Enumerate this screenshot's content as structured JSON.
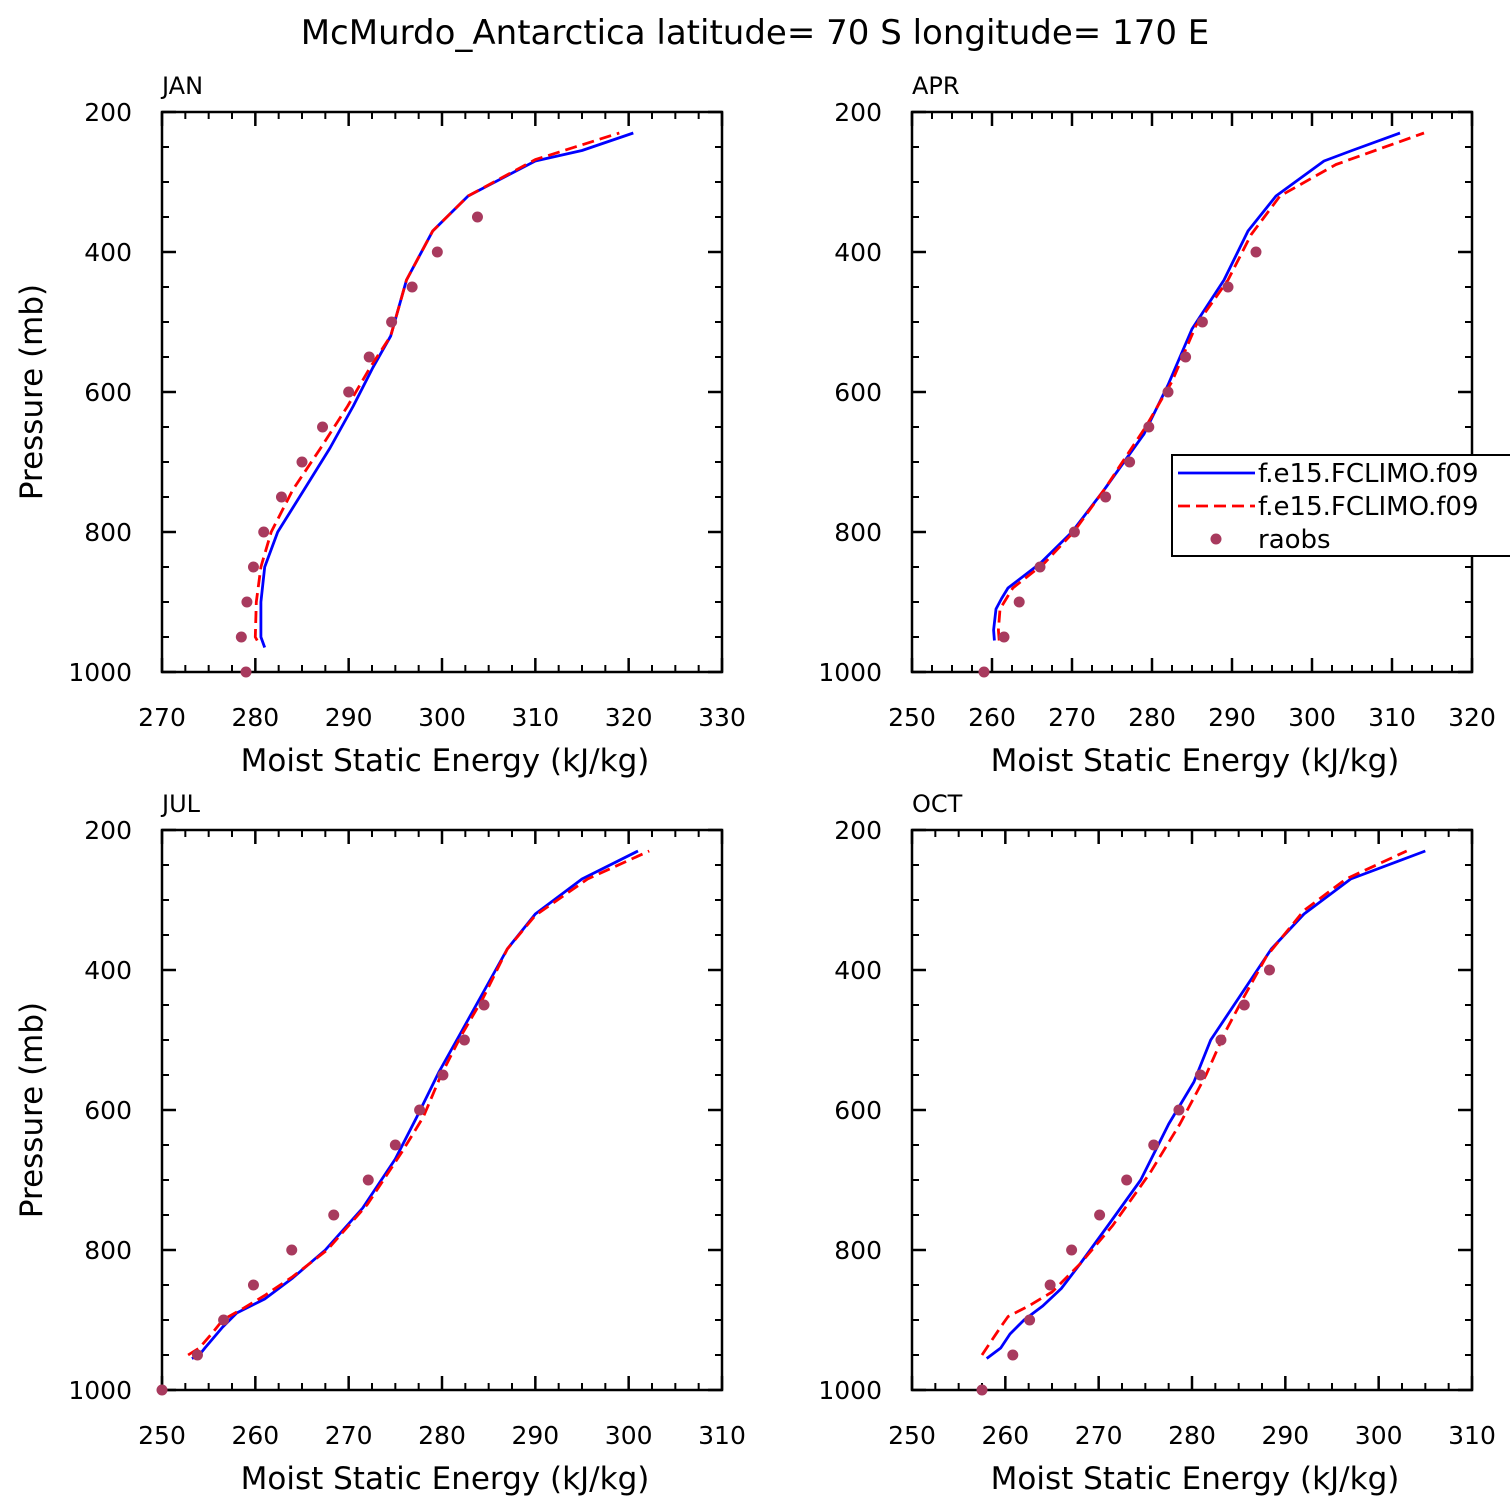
{
  "title": "McMurdo_Antarctica  latitude= 70 S longitude= 170 E",
  "colors": {
    "series_model_a": "#0000ff",
    "series_model_b": "#ff0000",
    "series_obs": "#a83a5e"
  },
  "legend": {
    "placement": "right-middle (APR panel)",
    "entries": [
      {
        "label": "f.e15.FCLIMO.f09",
        "style": "solid",
        "color": "#0000ff"
      },
      {
        "label": "f.e15.FCLIMO.f09",
        "style": "dashed",
        "color": "#ff0000"
      },
      {
        "label": "raobs",
        "style": "marker",
        "color": "#a83a5e"
      }
    ]
  },
  "chart_data": [
    {
      "type": "line",
      "title": "JAN",
      "xlabel": "Moist Static Energy (kJ/kg)",
      "ylabel": "Pressure (mb)",
      "xlim": [
        270,
        330
      ],
      "ylim": [
        1000,
        200
      ],
      "xticks": [
        270,
        280,
        290,
        300,
        310,
        320,
        330
      ],
      "yticks": [
        200,
        400,
        600,
        800,
        1000
      ],
      "series": [
        {
          "style": "solid",
          "color": "#0000ff",
          "points": [
            [
              281.0,
              965
            ],
            [
              280.6,
              950
            ],
            [
              280.6,
              900
            ],
            [
              281.0,
              850
            ],
            [
              282.4,
              800
            ],
            [
              285.2,
              740
            ],
            [
              288.0,
              680
            ],
            [
              290.5,
              620
            ],
            [
              292.6,
              565
            ],
            [
              294.5,
              520
            ],
            [
              296.2,
              440
            ],
            [
              299.0,
              370
            ],
            [
              302.8,
              320
            ],
            [
              310.0,
              270
            ],
            [
              315.0,
              255
            ],
            [
              320.5,
              230
            ]
          ]
        },
        {
          "style": "dashed",
          "color": "#ff0000",
          "points": [
            [
              280.2,
              955
            ],
            [
              280.0,
              950
            ],
            [
              280.1,
              900
            ],
            [
              280.6,
              850
            ],
            [
              281.7,
              800
            ],
            [
              284.0,
              740
            ],
            [
              287.0,
              680
            ],
            [
              289.9,
              620
            ],
            [
              292.3,
              565
            ],
            [
              294.5,
              520
            ],
            [
              296.2,
              440
            ],
            [
              299.0,
              370
            ],
            [
              302.8,
              320
            ],
            [
              310.0,
              268
            ],
            [
              319.0,
              230
            ]
          ]
        },
        {
          "style": "marker",
          "color": "#a83a5e",
          "points": [
            [
              279.0,
              1000
            ],
            [
              278.5,
              950
            ],
            [
              279.1,
              900
            ],
            [
              279.8,
              850
            ],
            [
              280.9,
              800
            ],
            [
              282.8,
              750
            ],
            [
              285.0,
              700
            ],
            [
              287.2,
              650
            ],
            [
              290.0,
              600
            ],
            [
              292.2,
              550
            ],
            [
              294.6,
              500
            ],
            [
              296.8,
              450
            ],
            [
              299.5,
              400
            ],
            [
              303.8,
              350
            ]
          ]
        }
      ]
    },
    {
      "type": "line",
      "title": "APR",
      "xlabel": "Moist Static Energy (kJ/kg)",
      "ylabel": "",
      "xlim": [
        250,
        320
      ],
      "ylim": [
        1000,
        200
      ],
      "xticks": [
        250,
        260,
        270,
        280,
        290,
        300,
        310,
        320
      ],
      "yticks": [
        200,
        400,
        600,
        800,
        1000
      ],
      "series": [
        {
          "style": "solid",
          "color": "#0000ff",
          "points": [
            [
              260.3,
              955
            ],
            [
              260.2,
              940
            ],
            [
              260.5,
              910
            ],
            [
              261.2,
              895
            ],
            [
              262.0,
              880
            ],
            [
              266.0,
              845
            ],
            [
              270.0,
              800
            ],
            [
              274.0,
              740
            ],
            [
              279.0,
              660
            ],
            [
              282.0,
              590
            ],
            [
              285.0,
              510
            ],
            [
              289.0,
              440
            ],
            [
              292.0,
              370
            ],
            [
              295.5,
              320
            ],
            [
              301.5,
              270
            ],
            [
              305.0,
              255
            ],
            [
              311.0,
              230
            ]
          ]
        },
        {
          "style": "dashed",
          "color": "#ff0000",
          "points": [
            [
              260.9,
              955
            ],
            [
              260.8,
              940
            ],
            [
              261.0,
              910
            ],
            [
              261.8,
              895
            ],
            [
              262.6,
              880
            ],
            [
              266.5,
              845
            ],
            [
              270.2,
              800
            ],
            [
              274.0,
              740
            ],
            [
              279.2,
              650
            ],
            [
              282.5,
              585
            ],
            [
              285.5,
              505
            ],
            [
              289.5,
              440
            ],
            [
              292.4,
              375
            ],
            [
              296.0,
              320
            ],
            [
              303.0,
              275
            ],
            [
              314.0,
              230
            ]
          ]
        },
        {
          "style": "marker",
          "color": "#a83a5e",
          "points": [
            [
              259.0,
              1000
            ],
            [
              261.5,
              950
            ],
            [
              263.4,
              900
            ],
            [
              266.0,
              850
            ],
            [
              270.3,
              800
            ],
            [
              274.2,
              750
            ],
            [
              277.2,
              700
            ],
            [
              279.6,
              650
            ],
            [
              282.0,
              600
            ],
            [
              284.2,
              550
            ],
            [
              286.3,
              500
            ],
            [
              289.5,
              450
            ],
            [
              293.0,
              400
            ]
          ]
        }
      ]
    },
    {
      "type": "line",
      "title": "JUL",
      "xlabel": "Moist Static Energy (kJ/kg)",
      "ylabel": "Pressure (mb)",
      "xlim": [
        250,
        310
      ],
      "ylim": [
        1000,
        200
      ],
      "xticks": [
        250,
        260,
        270,
        280,
        290,
        300,
        310
      ],
      "yticks": [
        200,
        400,
        600,
        800,
        1000
      ],
      "series": [
        {
          "style": "solid",
          "color": "#0000ff",
          "points": [
            [
              253.2,
              955
            ],
            [
              254.0,
              950
            ],
            [
              254.6,
              940
            ],
            [
              256.5,
              910
            ],
            [
              258.0,
              890
            ],
            [
              261.0,
              870
            ],
            [
              264.0,
              840
            ],
            [
              267.5,
              800
            ],
            [
              271.5,
              740
            ],
            [
              275.0,
              670
            ],
            [
              277.3,
              610
            ],
            [
              279.7,
              545
            ],
            [
              282.0,
              490
            ],
            [
              284.5,
              430
            ],
            [
              287.0,
              370
            ],
            [
              290.0,
              320
            ],
            [
              295.0,
              270
            ],
            [
              301.0,
              230
            ]
          ]
        },
        {
          "style": "dashed",
          "color": "#ff0000",
          "points": [
            [
              252.8,
              950
            ],
            [
              254.0,
              940
            ],
            [
              255.3,
              920
            ],
            [
              256.5,
              900
            ],
            [
              258.5,
              885
            ],
            [
              261.0,
              865
            ],
            [
              264.0,
              838
            ],
            [
              267.7,
              800
            ],
            [
              272.0,
              735
            ],
            [
              275.7,
              660
            ],
            [
              278.0,
              610
            ],
            [
              279.9,
              550
            ],
            [
              282.0,
              495
            ],
            [
              284.4,
              440
            ],
            [
              287.0,
              370
            ],
            [
              290.0,
              322
            ],
            [
              295.6,
              270
            ],
            [
              302.2,
              230
            ]
          ]
        },
        {
          "style": "marker",
          "color": "#a83a5e",
          "points": [
            [
              250.0,
              1000
            ],
            [
              253.8,
              950
            ],
            [
              256.6,
              900
            ],
            [
              259.8,
              850
            ],
            [
              263.9,
              800
            ],
            [
              268.4,
              750
            ],
            [
              272.1,
              700
            ],
            [
              275.0,
              650
            ],
            [
              277.6,
              600
            ],
            [
              280.1,
              550
            ],
            [
              282.4,
              500
            ],
            [
              284.5,
              450
            ]
          ]
        }
      ]
    },
    {
      "type": "line",
      "title": "OCT",
      "xlabel": "Moist Static Energy (kJ/kg)",
      "ylabel": "",
      "xlim": [
        250,
        310
      ],
      "ylim": [
        1000,
        200
      ],
      "xticks": [
        250,
        260,
        270,
        280,
        290,
        300,
        310
      ],
      "yticks": [
        200,
        400,
        600,
        800,
        1000
      ],
      "series": [
        {
          "style": "solid",
          "color": "#0000ff",
          "points": [
            [
              258.0,
              955
            ],
            [
              259.5,
              940
            ],
            [
              260.5,
              920
            ],
            [
              262.0,
              900
            ],
            [
              264.0,
              880
            ],
            [
              266.0,
              855
            ],
            [
              268.0,
              820
            ],
            [
              271.0,
              765
            ],
            [
              274.5,
              700
            ],
            [
              277.5,
              620
            ],
            [
              280.2,
              560
            ],
            [
              282.0,
              500
            ],
            [
              285.0,
              440
            ],
            [
              288.5,
              370
            ],
            [
              292.0,
              320
            ],
            [
              297.0,
              270
            ],
            [
              305.0,
              230
            ]
          ]
        },
        {
          "style": "dashed",
          "color": "#ff0000",
          "points": [
            [
              257.5,
              950
            ],
            [
              258.5,
              930
            ],
            [
              259.5,
              910
            ],
            [
              260.3,
              895
            ],
            [
              262.5,
              880
            ],
            [
              265.0,
              860
            ],
            [
              268.0,
              820
            ],
            [
              271.5,
              765
            ],
            [
              275.5,
              690
            ],
            [
              278.7,
              620
            ],
            [
              281.5,
              550
            ],
            [
              283.5,
              490
            ],
            [
              285.5,
              440
            ],
            [
              288.0,
              380
            ],
            [
              292.0,
              315
            ],
            [
              296.5,
              270
            ],
            [
              303.0,
              230
            ]
          ]
        },
        {
          "style": "marker",
          "color": "#a83a5e",
          "points": [
            [
              257.5,
              1000
            ],
            [
              260.8,
              950
            ],
            [
              262.6,
              900
            ],
            [
              264.8,
              850
            ],
            [
              267.1,
              800
            ],
            [
              270.1,
              750
            ],
            [
              273.0,
              700
            ],
            [
              275.9,
              650
            ],
            [
              278.6,
              600
            ],
            [
              280.9,
              550
            ],
            [
              283.1,
              500
            ],
            [
              285.6,
              450
            ],
            [
              288.3,
              400
            ]
          ]
        }
      ]
    }
  ]
}
